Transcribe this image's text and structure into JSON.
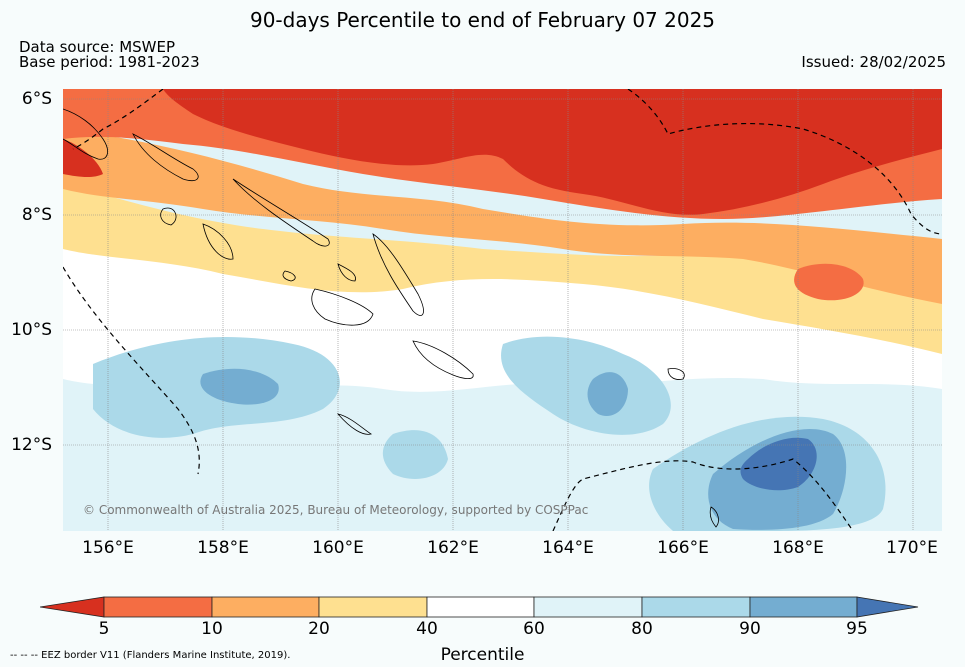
{
  "title": "90-days Percentile to end of February 07 2025",
  "data_source": "Data source: MSWEP",
  "base_period": "Base period: 1981-2023",
  "issued": "Issued: 28/02/2025",
  "copyright": "© Commonwealth of Australia 2025, Bureau of Meteorology, supported by COSPPac",
  "eez_note": "--  --  -- EEZ border V11 (Flanders Marine Institute, 2019).",
  "map": {
    "lat_labels": [
      "6°S",
      "8°S",
      "10°S",
      "12°S"
    ],
    "lon_labels": [
      "156°E",
      "158°E",
      "160°E",
      "162°E",
      "164°E",
      "166°E",
      "168°E",
      "170°E"
    ]
  },
  "colorbar": {
    "title": "Percentile",
    "ticks": [
      "5",
      "10",
      "20",
      "40",
      "60",
      "80",
      "90",
      "95"
    ],
    "colors": {
      "below_5": "#d7301f",
      "5_10": "#f46d43",
      "10_20": "#fdae61",
      "20_40": "#fee090",
      "40_60": "#ffffff",
      "60_80": "#e0f3f8",
      "80_90": "#abd9e9",
      "90_95": "#74add1",
      "above_95": "#4575b4"
    }
  }
}
